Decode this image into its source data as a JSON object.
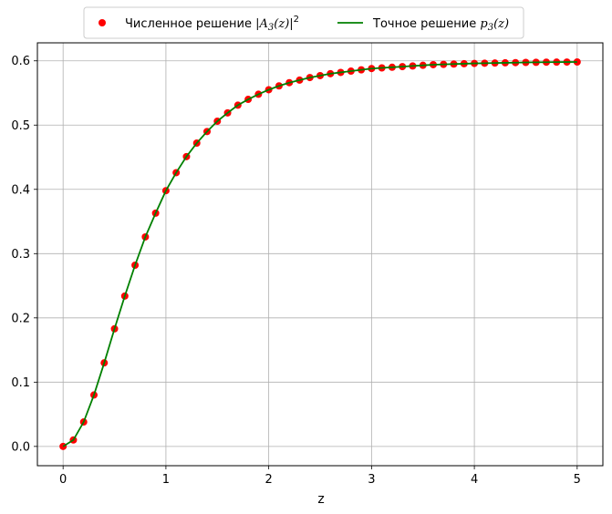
{
  "chart_data": {
    "type": "line",
    "xlabel": "z",
    "ylabel": "",
    "xlim": [
      -0.25,
      5.25
    ],
    "ylim": [
      -0.03,
      0.628
    ],
    "x_ticks": [
      0,
      1,
      2,
      3,
      4,
      5
    ],
    "y_ticks": [
      0.0,
      0.1,
      0.2,
      0.3,
      0.4,
      0.5,
      0.6
    ],
    "grid": true,
    "legend_position": "top-center, above plot",
    "series": [
      {
        "name": "Численное решение |A3(z)|2",
        "kind": "scatter",
        "color": "#ff0000",
        "x": [
          0.0,
          0.1,
          0.2,
          0.3,
          0.4,
          0.5,
          0.6,
          0.7,
          0.8,
          0.9,
          1.0,
          1.1,
          1.2,
          1.3,
          1.4,
          1.5,
          1.6,
          1.7,
          1.8,
          1.9,
          2.0,
          2.1,
          2.2,
          2.3,
          2.4,
          2.5,
          2.6,
          2.7,
          2.8,
          2.9,
          3.0,
          3.1,
          3.2,
          3.3,
          3.4,
          3.5,
          3.6,
          3.7,
          3.8,
          3.9,
          4.0,
          4.1,
          4.2,
          4.3,
          4.4,
          4.5,
          4.6,
          4.7,
          4.8,
          4.9,
          5.0
        ],
        "y": [
          0.0,
          0.01,
          0.038,
          0.08,
          0.13,
          0.183,
          0.234,
          0.282,
          0.326,
          0.363,
          0.398,
          0.426,
          0.451,
          0.472,
          0.49,
          0.506,
          0.519,
          0.531,
          0.54,
          0.548,
          0.555,
          0.561,
          0.566,
          0.57,
          0.574,
          0.577,
          0.58,
          0.582,
          0.584,
          0.586,
          0.588,
          0.589,
          0.59,
          0.591,
          0.592,
          0.593,
          0.594,
          0.5945,
          0.595,
          0.5955,
          0.596,
          0.5963,
          0.5966,
          0.5969,
          0.5972,
          0.5975,
          0.5977,
          0.5979,
          0.598,
          0.5981,
          0.5982
        ]
      },
      {
        "name": "Точное решение p3(z)",
        "kind": "line",
        "color": "#008000",
        "x": [
          0.0,
          0.1,
          0.2,
          0.3,
          0.4,
          0.5,
          0.6,
          0.7,
          0.8,
          0.9,
          1.0,
          1.1,
          1.2,
          1.3,
          1.4,
          1.5,
          1.6,
          1.7,
          1.8,
          1.9,
          2.0,
          2.1,
          2.2,
          2.3,
          2.4,
          2.5,
          2.6,
          2.7,
          2.8,
          2.9,
          3.0,
          3.1,
          3.2,
          3.3,
          3.4,
          3.5,
          3.6,
          3.7,
          3.8,
          3.9,
          4.0,
          4.1,
          4.2,
          4.3,
          4.4,
          4.5,
          4.6,
          4.7,
          4.8,
          4.9,
          5.0
        ],
        "y": [
          0.0,
          0.01,
          0.038,
          0.08,
          0.13,
          0.183,
          0.234,
          0.282,
          0.326,
          0.363,
          0.398,
          0.426,
          0.451,
          0.472,
          0.49,
          0.506,
          0.519,
          0.531,
          0.54,
          0.548,
          0.555,
          0.561,
          0.566,
          0.57,
          0.574,
          0.577,
          0.58,
          0.582,
          0.584,
          0.586,
          0.588,
          0.589,
          0.59,
          0.591,
          0.592,
          0.593,
          0.594,
          0.5945,
          0.595,
          0.5955,
          0.596,
          0.5963,
          0.5966,
          0.5969,
          0.5972,
          0.5975,
          0.5977,
          0.5979,
          0.598,
          0.5981,
          0.5982
        ]
      }
    ],
    "legend": {
      "numeric_prefix": "Численное решение ",
      "numeric_math": "|A",
      "numeric_sub": "3",
      "numeric_math2": "(z)|",
      "numeric_sup": "2",
      "exact_prefix": "Точное решение ",
      "exact_math": "p",
      "exact_sub": "3",
      "exact_math2": "(z)"
    }
  }
}
